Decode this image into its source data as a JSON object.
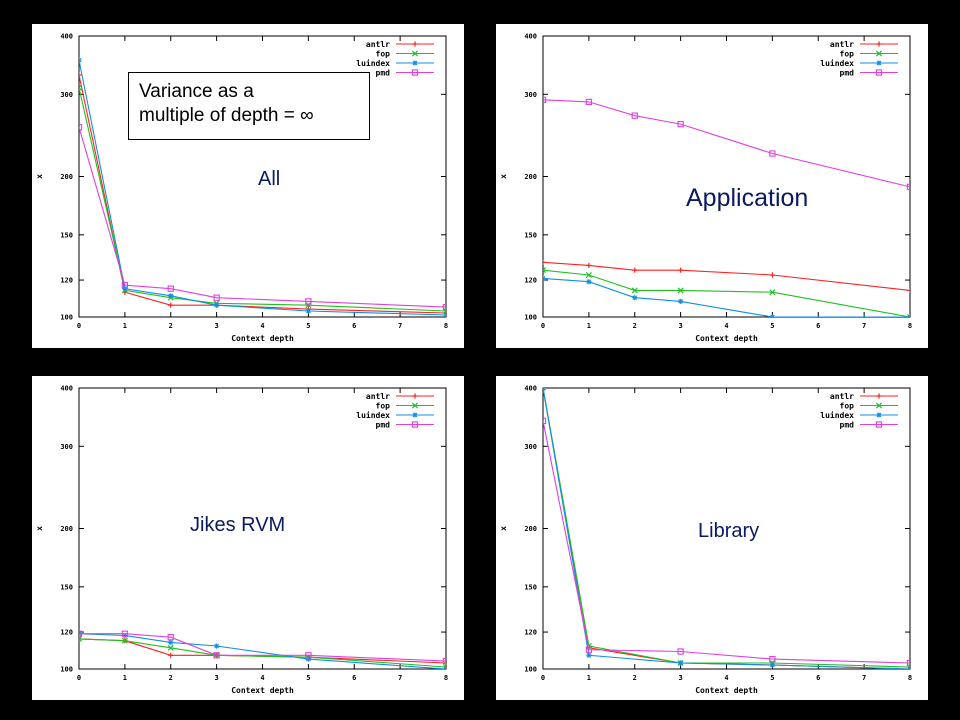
{
  "note": {
    "line1": "Variance as a",
    "line2": "multiple of depth = ∞"
  },
  "legend_colors": {
    "antlr": "#ff2020",
    "fop": "#20c020",
    "luindex": "#1090e0",
    "pmd": "#e040e0"
  },
  "chart_data": [
    {
      "type": "line",
      "panel_title": "All",
      "xlabel": "Context depth",
      "ylabel": "x",
      "x": [
        0,
        1,
        2,
        3,
        5,
        8
      ],
      "xticks": [
        0,
        1,
        2,
        3,
        4,
        5,
        6,
        7,
        8
      ],
      "yticks": [
        100,
        120,
        150,
        200,
        300,
        400
      ],
      "ylim": [
        100,
        400
      ],
      "yscale": "log",
      "grid": false,
      "legend": "top-right",
      "series": [
        {
          "name": "antlr",
          "color": "#ff2020",
          "marker": "+",
          "values": [
            330,
            113,
            106,
            106,
            104,
            102
          ]
        },
        {
          "name": "fop",
          "color": "#20c020",
          "marker": "x",
          "values": [
            310,
            114,
            110,
            107,
            106,
            103
          ]
        },
        {
          "name": "luindex",
          "color": "#1090e0",
          "marker": "*",
          "values": [
            355,
            115,
            111,
            106,
            103,
            101
          ]
        },
        {
          "name": "pmd",
          "color": "#e040e0",
          "marker": "square",
          "values": [
            255,
            117,
            115,
            110,
            108,
            105
          ]
        }
      ]
    },
    {
      "type": "line",
      "panel_title": "Application",
      "xlabel": "Context depth",
      "ylabel": "x",
      "x": [
        0,
        1,
        2,
        3,
        5,
        8
      ],
      "xticks": [
        0,
        1,
        2,
        3,
        4,
        5,
        6,
        7,
        8
      ],
      "yticks": [
        100,
        120,
        150,
        200,
        300,
        400
      ],
      "ylim": [
        100,
        400
      ],
      "yscale": "log",
      "grid": false,
      "legend": "top-right",
      "series": [
        {
          "name": "antlr",
          "color": "#ff2020",
          "marker": "+",
          "values": [
            131,
            129,
            126,
            126,
            123,
            114
          ]
        },
        {
          "name": "fop",
          "color": "#20c020",
          "marker": "x",
          "values": [
            126,
            123,
            114,
            114,
            113,
            100
          ]
        },
        {
          "name": "luindex",
          "color": "#1090e0",
          "marker": "*",
          "values": [
            121,
            119,
            110,
            108,
            100,
            100
          ]
        },
        {
          "name": "pmd",
          "color": "#e040e0",
          "marker": "square",
          "values": [
            292,
            289,
            270,
            259,
            224,
            190
          ]
        }
      ]
    },
    {
      "type": "line",
      "panel_title": "Jikes RVM",
      "xlabel": "Context depth",
      "ylabel": "x",
      "x": [
        0,
        1,
        2,
        3,
        5,
        8
      ],
      "xticks": [
        0,
        1,
        2,
        3,
        4,
        5,
        6,
        7,
        8
      ],
      "yticks": [
        100,
        120,
        150,
        200,
        300,
        400
      ],
      "ylim": [
        100,
        400
      ],
      "yscale": "log",
      "grid": false,
      "legend": "top-right",
      "series": [
        {
          "name": "antlr",
          "color": "#ff2020",
          "marker": "+",
          "values": [
            116,
            115,
            107,
            107,
            106,
            103
          ]
        },
        {
          "name": "fop",
          "color": "#20c020",
          "marker": "x",
          "values": [
            116,
            115,
            111,
            107,
            106,
            101
          ]
        },
        {
          "name": "luindex",
          "color": "#1090e0",
          "marker": "*",
          "values": [
            119,
            118,
            114,
            112,
            105,
            100
          ]
        },
        {
          "name": "pmd",
          "color": "#e040e0",
          "marker": "square",
          "values": [
            119,
            119,
            117,
            107,
            107,
            104
          ]
        }
      ]
    },
    {
      "type": "line",
      "panel_title": "Library",
      "xlabel": "Context depth",
      "ylabel": "x",
      "x": [
        0,
        1,
        3,
        5,
        8
      ],
      "xticks": [
        0,
        1,
        2,
        3,
        4,
        5,
        6,
        7,
        8
      ],
      "yticks": [
        100,
        120,
        150,
        200,
        300,
        400
      ],
      "ylim": [
        100,
        400
      ],
      "yscale": "log",
      "grid": false,
      "legend": "top-right",
      "series": [
        {
          "name": "antlr",
          "color": "#ff2020",
          "marker": "+",
          "values": [
            400,
            111,
            103,
            102,
            100
          ]
        },
        {
          "name": "fop",
          "color": "#20c020",
          "marker": "x",
          "values": [
            400,
            112,
            103,
            103,
            101
          ]
        },
        {
          "name": "luindex",
          "color": "#1090e0",
          "marker": "*",
          "values": [
            400,
            107,
            103,
            102,
            100
          ]
        },
        {
          "name": "pmd",
          "color": "#e040e0",
          "marker": "square",
          "values": [
            340,
            110,
            109,
            105,
            103
          ]
        }
      ]
    }
  ]
}
